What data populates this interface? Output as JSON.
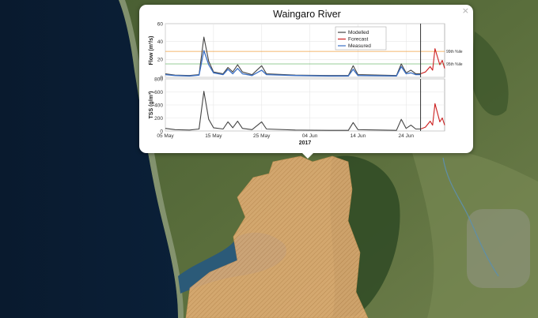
{
  "popup": {
    "close_label": "×"
  },
  "chart_data": {
    "type": "line",
    "title": "Waingaro River",
    "xlabel": "2017",
    "x_ticks": [
      "05 May",
      "15 May",
      "25 May",
      "04 Jun",
      "14 Jun",
      "24 Jun"
    ],
    "x_range": [
      "2017-05-05",
      "2017-07-02"
    ],
    "forecast_start": "2017-06-27",
    "colors": {
      "modelled": "#444444",
      "forecast": "#cc1f1f",
      "measured": "#3a6fc4",
      "p99": "#f0a040",
      "p95": "#77bb77"
    },
    "panels": [
      {
        "ylabel": "Flow (m³/s)",
        "ylim": [
          0,
          60
        ],
        "y_ticks": [
          "0",
          "20",
          "40",
          "60"
        ],
        "legend": [
          "Modelled",
          "Forecast",
          "Measured"
        ],
        "percentiles": [
          {
            "label": "99th %ile",
            "value": 29
          },
          {
            "label": "95th %ile",
            "value": 15
          }
        ],
        "series": [
          {
            "name": "Modelled",
            "points": [
              [
                "2017-05-05",
                4
              ],
              [
                "2017-05-07",
                2.5
              ],
              [
                "2017-05-10",
                2
              ],
              [
                "2017-05-12",
                3
              ],
              [
                "2017-05-13",
                45
              ],
              [
                "2017-05-14",
                18
              ],
              [
                "2017-05-15",
                6
              ],
              [
                "2017-05-17",
                4
              ],
              [
                "2017-05-18",
                11
              ],
              [
                "2017-05-19",
                6
              ],
              [
                "2017-05-20",
                14
              ],
              [
                "2017-05-21",
                6
              ],
              [
                "2017-05-23",
                3
              ],
              [
                "2017-05-25",
                13
              ],
              [
                "2017-05-26",
                4
              ],
              [
                "2017-06-01",
                2.5
              ],
              [
                "2017-06-08",
                2
              ],
              [
                "2017-06-12",
                2
              ],
              [
                "2017-06-13",
                13
              ],
              [
                "2017-06-14",
                3
              ],
              [
                "2017-06-22",
                2
              ],
              [
                "2017-06-23",
                15
              ],
              [
                "2017-06-24",
                5
              ],
              [
                "2017-06-25",
                8
              ],
              [
                "2017-06-26",
                4
              ],
              [
                "2017-06-27",
                4
              ]
            ]
          },
          {
            "name": "Forecast",
            "points": [
              [
                "2017-06-27",
                4
              ],
              [
                "2017-06-28",
                6
              ],
              [
                "2017-06-29",
                12
              ],
              [
                "2017-06-29T12",
                8
              ],
              [
                "2017-06-30",
                32
              ],
              [
                "2017-07-01",
                14
              ],
              [
                "2017-07-01T12",
                19
              ],
              [
                "2017-07-02",
                10
              ]
            ]
          },
          {
            "name": "Measured",
            "points": [
              [
                "2017-05-05",
                3
              ],
              [
                "2017-05-07",
                2
              ],
              [
                "2017-05-10",
                1.5
              ],
              [
                "2017-05-12",
                2.5
              ],
              [
                "2017-05-13",
                30
              ],
              [
                "2017-05-14",
                14
              ],
              [
                "2017-05-15",
                5
              ],
              [
                "2017-05-17",
                3
              ],
              [
                "2017-05-18",
                9
              ],
              [
                "2017-05-19",
                4
              ],
              [
                "2017-05-20",
                10
              ],
              [
                "2017-05-21",
                4
              ],
              [
                "2017-05-23",
                2
              ],
              [
                "2017-05-25",
                8
              ],
              [
                "2017-05-26",
                3
              ],
              [
                "2017-06-01",
                2
              ],
              [
                "2017-06-08",
                1.5
              ],
              [
                "2017-06-12",
                1.5
              ],
              [
                "2017-06-13",
                9
              ],
              [
                "2017-06-14",
                2
              ],
              [
                "2017-06-22",
                1.5
              ],
              [
                "2017-06-23",
                12
              ],
              [
                "2017-06-24",
                4
              ],
              [
                "2017-06-25",
                5
              ],
              [
                "2017-06-26",
                3
              ],
              [
                "2017-06-27",
                3
              ]
            ]
          }
        ]
      },
      {
        "ylabel": "TSS (g/m³)",
        "ylim": [
          0,
          800
        ],
        "y_ticks": [
          "0",
          "200",
          "400",
          "600",
          "800"
        ],
        "series": [
          {
            "name": "Modelled",
            "points": [
              [
                "2017-05-05",
                40
              ],
              [
                "2017-05-07",
                20
              ],
              [
                "2017-05-10",
                15
              ],
              [
                "2017-05-12",
                30
              ],
              [
                "2017-05-13",
                610
              ],
              [
                "2017-05-14",
                180
              ],
              [
                "2017-05-15",
                50
              ],
              [
                "2017-05-17",
                30
              ],
              [
                "2017-05-18",
                140
              ],
              [
                "2017-05-19",
                50
              ],
              [
                "2017-05-20",
                150
              ],
              [
                "2017-05-21",
                40
              ],
              [
                "2017-05-23",
                20
              ],
              [
                "2017-05-25",
                140
              ],
              [
                "2017-05-26",
                30
              ],
              [
                "2017-06-01",
                15
              ],
              [
                "2017-06-08",
                10
              ],
              [
                "2017-06-12",
                10
              ],
              [
                "2017-06-13",
                130
              ],
              [
                "2017-06-14",
                20
              ],
              [
                "2017-06-22",
                10
              ],
              [
                "2017-06-23",
                180
              ],
              [
                "2017-06-24",
                40
              ],
              [
                "2017-06-25",
                90
              ],
              [
                "2017-06-26",
                30
              ],
              [
                "2017-06-27",
                30
              ]
            ]
          },
          {
            "name": "Forecast",
            "points": [
              [
                "2017-06-27",
                30
              ],
              [
                "2017-06-28",
                60
              ],
              [
                "2017-06-29",
                150
              ],
              [
                "2017-06-29T12",
                90
              ],
              [
                "2017-06-30",
                420
              ],
              [
                "2017-07-01",
                140
              ],
              [
                "2017-07-01T12",
                200
              ],
              [
                "2017-07-02",
                90
              ]
            ]
          }
        ]
      }
    ]
  }
}
